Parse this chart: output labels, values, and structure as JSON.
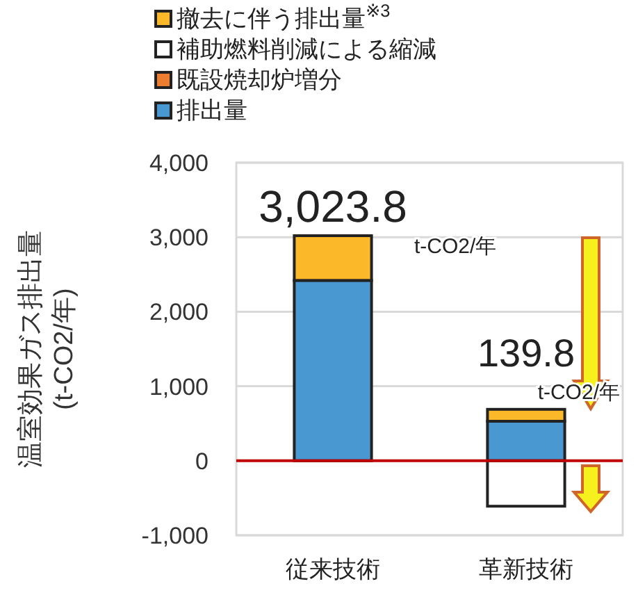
{
  "chart_data": {
    "type": "bar",
    "stacked": true,
    "ylabel": "温室効果ガス排出量\n(t-CO2/年)",
    "categories": [
      "従来技術",
      "革新技術"
    ],
    "series": [
      {
        "name": "排出量",
        "color": "#4a98d2",
        "values": [
          2420,
          530
        ]
      },
      {
        "name": "既設焼却炉増分",
        "color": "#ed7d31",
        "values": [
          null,
          null
        ]
      },
      {
        "name": "補助燃料削減による縮減",
        "color": "#ffffff",
        "values": [
          null,
          -610
        ]
      },
      {
        "name": "撤去に伴う排出量$^{※3}$",
        "color": "#fbb829",
        "values": [
          600,
          160
        ]
      }
    ],
    "ylim": [
      -1000,
      4000
    ],
    "yticks": [
      {
        "value": -1000,
        "label": "-1,000"
      },
      0,
      {
        "value": 1000,
        "label": "1,000"
      },
      {
        "value": 2000,
        "label": "2,000"
      },
      {
        "value": 3000,
        "label": "3,000"
      },
      {
        "value": 4000,
        "label": "4,000"
      }
    ],
    "grid": "y",
    "legend": "top left",
    "ref_lines": [
      {
        "axis": "y",
        "value": 0,
        "color": "#c00000"
      }
    ],
    "annotations": [
      {
        "text": "3,023.8",
        "x": "従来技術",
        "y": 3023.8
      },
      "t-CO2/年",
      {
        "text": "139.8",
        "x": "革新技術",
        "y": 710
      },
      "t-CO2/年"
    ]
  }
}
